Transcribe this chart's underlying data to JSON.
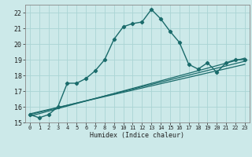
{
  "title": "",
  "xlabel": "Humidex (Indice chaleur)",
  "ylabel": "",
  "bg_color": "#cce9e9",
  "grid_color": "#aad4d4",
  "line_color": "#1a6b6b",
  "xlim": [
    -0.5,
    23.5
  ],
  "ylim": [
    15,
    22.5
  ],
  "xticks": [
    0,
    1,
    2,
    3,
    4,
    5,
    6,
    7,
    8,
    9,
    10,
    11,
    12,
    13,
    14,
    15,
    16,
    17,
    18,
    19,
    20,
    21,
    22,
    23
  ],
  "yticks": [
    15,
    16,
    17,
    18,
    19,
    20,
    21,
    22
  ],
  "main_x": [
    0,
    1,
    2,
    3,
    4,
    5,
    6,
    7,
    8,
    9,
    10,
    11,
    12,
    13,
    14,
    15,
    16,
    17,
    18,
    19,
    20,
    21,
    22,
    23
  ],
  "main_y": [
    15.5,
    15.3,
    15.5,
    16.0,
    17.5,
    17.5,
    17.8,
    18.3,
    19.0,
    20.3,
    21.1,
    21.3,
    21.4,
    22.2,
    21.6,
    20.8,
    20.1,
    18.7,
    18.4,
    18.8,
    18.2,
    18.8,
    19.0,
    19.0
  ],
  "line1_x": [
    0,
    23
  ],
  "line1_y": [
    15.4,
    19.1
  ],
  "line2_x": [
    0,
    23
  ],
  "line2_y": [
    15.5,
    18.9
  ],
  "line3_x": [
    0,
    23
  ],
  "line3_y": [
    15.55,
    18.7
  ]
}
